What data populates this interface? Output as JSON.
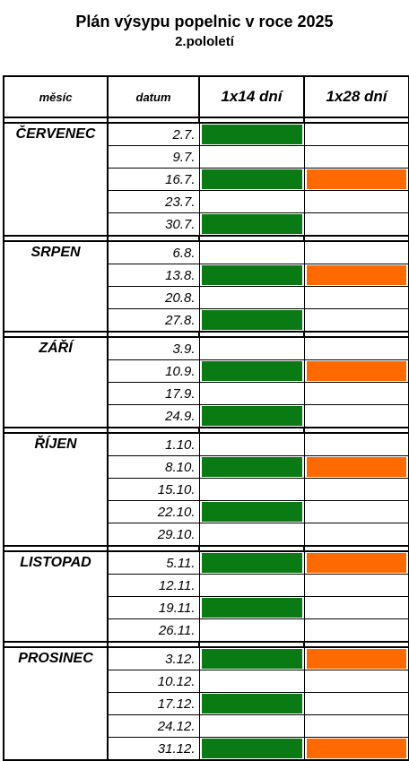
{
  "title": "Plán výsypu popelnic v roce 2025",
  "subtitle": "2.pololetí",
  "headers": {
    "month": "měsíc",
    "date": "datum",
    "col14": "1x14 dní",
    "col28": "1x28 dní"
  },
  "colors": {
    "green": "#0a7a14",
    "orange": "#ff6a00"
  },
  "months": [
    {
      "name": "ČERVENEC",
      "rows": [
        {
          "date": "2.7.",
          "g": true,
          "o": false
        },
        {
          "date": "9.7.",
          "g": false,
          "o": false
        },
        {
          "date": "16.7.",
          "g": true,
          "o": true
        },
        {
          "date": "23.7.",
          "g": false,
          "o": false
        },
        {
          "date": "30.7.",
          "g": true,
          "o": false
        }
      ]
    },
    {
      "name": "SRPEN",
      "rows": [
        {
          "date": "6.8.",
          "g": false,
          "o": false
        },
        {
          "date": "13.8.",
          "g": true,
          "o": true
        },
        {
          "date": "20.8.",
          "g": false,
          "o": false
        },
        {
          "date": "27.8.",
          "g": true,
          "o": false
        }
      ]
    },
    {
      "name": "ZÁŘÍ",
      "rows": [
        {
          "date": "3.9.",
          "g": false,
          "o": false
        },
        {
          "date": "10.9.",
          "g": true,
          "o": true
        },
        {
          "date": "17.9.",
          "g": false,
          "o": false
        },
        {
          "date": "24.9.",
          "g": true,
          "o": false
        }
      ]
    },
    {
      "name": "ŘÍJEN",
      "rows": [
        {
          "date": "1.10.",
          "g": false,
          "o": false
        },
        {
          "date": "8.10.",
          "g": true,
          "o": true
        },
        {
          "date": "15.10.",
          "g": false,
          "o": false
        },
        {
          "date": "22.10.",
          "g": true,
          "o": false
        },
        {
          "date": "29.10.",
          "g": false,
          "o": false
        }
      ]
    },
    {
      "name": "LISTOPAD",
      "rows": [
        {
          "date": "5.11.",
          "g": true,
          "o": true
        },
        {
          "date": "12.11.",
          "g": false,
          "o": false
        },
        {
          "date": "19.11.",
          "g": true,
          "o": false
        },
        {
          "date": "26.11.",
          "g": false,
          "o": false
        }
      ]
    },
    {
      "name": "PROSINEC",
      "rows": [
        {
          "date": "3.12.",
          "g": true,
          "o": true
        },
        {
          "date": "10.12.",
          "g": false,
          "o": false
        },
        {
          "date": "17.12.",
          "g": true,
          "o": false
        },
        {
          "date": "24.12.",
          "g": false,
          "o": false
        },
        {
          "date": "31.12.",
          "g": true,
          "o": true
        }
      ]
    }
  ]
}
